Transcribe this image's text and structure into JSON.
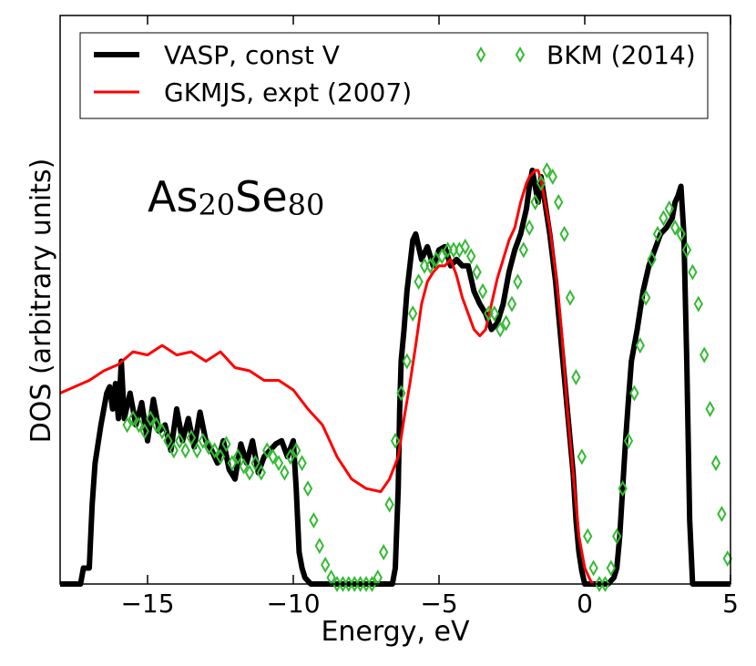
{
  "chart_data": {
    "type": "line",
    "title": "",
    "annotation": {
      "base1": "As",
      "sub1": "20",
      "base2": "Se",
      "sub2": "80"
    },
    "xlabel": "Energy, eV",
    "ylabel": "DOS (arbitrary units)",
    "xlim": [
      -18,
      5
    ],
    "ylim": [
      0,
      1.3
    ],
    "x_ticks": [
      -15,
      -10,
      -5,
      0,
      5
    ],
    "x_tick_labels": [
      "−15",
      "−10",
      "−5",
      "0",
      "5"
    ],
    "grid": false,
    "legend_placement": "top",
    "series": [
      {
        "name": "VASP, const V",
        "style": "line",
        "color": "#000000",
        "x": [
          -18,
          -17.3,
          -17.2,
          -17.0,
          -16.9,
          -16.8,
          -16.6,
          -16.5,
          -16.4,
          -16.3,
          -16.2,
          -16.1,
          -16.0,
          -15.9,
          -15.8,
          -15.6,
          -15.4,
          -15.2,
          -15.0,
          -14.8,
          -14.6,
          -14.4,
          -14.2,
          -14.0,
          -13.8,
          -13.6,
          -13.4,
          -13.2,
          -13.0,
          -12.8,
          -12.6,
          -12.4,
          -12.2,
          -12.0,
          -11.8,
          -11.6,
          -11.4,
          -11.2,
          -11.0,
          -10.8,
          -10.6,
          -10.4,
          -10.2,
          -10.0,
          -9.9,
          -9.8,
          -9.7,
          -9.6,
          -9.4,
          -9.0,
          -8.0,
          -7.0,
          -6.6,
          -6.5,
          -6.4,
          -6.35,
          -6.3,
          -6.2,
          -6.1,
          -6.0,
          -5.9,
          -5.8,
          -5.6,
          -5.4,
          -5.2,
          -5.0,
          -4.8,
          -4.6,
          -4.4,
          -4.2,
          -4.0,
          -3.8,
          -3.6,
          -3.4,
          -3.2,
          -3.0,
          -2.8,
          -2.6,
          -2.4,
          -2.2,
          -2.0,
          -1.9,
          -1.8,
          -1.7,
          -1.6,
          -1.5,
          -1.4,
          -1.2,
          -1.0,
          -0.8,
          -0.6,
          -0.4,
          -0.3,
          -0.2,
          -0.1,
          0.0,
          0.2,
          0.4,
          0.6,
          0.8,
          1.0,
          1.1,
          1.2,
          1.3,
          1.4,
          1.5,
          1.6,
          1.8,
          2.0,
          2.2,
          2.4,
          2.6,
          2.8,
          3.0,
          3.1,
          3.2,
          3.3,
          3.4,
          3.5,
          3.6,
          3.7,
          5.0
        ],
        "y": [
          0,
          0,
          0.05,
          0.05,
          0.25,
          0.38,
          0.5,
          0.55,
          0.6,
          0.62,
          0.55,
          0.63,
          0.52,
          0.7,
          0.52,
          0.6,
          0.5,
          0.57,
          0.45,
          0.58,
          0.48,
          0.5,
          0.42,
          0.55,
          0.45,
          0.52,
          0.43,
          0.54,
          0.45,
          0.42,
          0.38,
          0.45,
          0.36,
          0.33,
          0.44,
          0.38,
          0.45,
          0.35,
          0.4,
          0.42,
          0.44,
          0.45,
          0.4,
          0.45,
          0.3,
          0.1,
          0.05,
          0.02,
          0,
          0,
          0,
          0,
          0,
          0.05,
          0.3,
          0.55,
          0.7,
          0.8,
          0.92,
          1.0,
          1.08,
          1.1,
          1.02,
          1.06,
          1.0,
          1.05,
          1.06,
          1.0,
          1.02,
          1.0,
          1.0,
          0.92,
          0.88,
          0.85,
          0.8,
          0.82,
          0.88,
          0.98,
          1.05,
          1.1,
          1.18,
          1.25,
          1.3,
          1.25,
          1.2,
          1.28,
          1.22,
          1.1,
          0.95,
          0.75,
          0.55,
          0.35,
          0.2,
          0.1,
          0.04,
          0.0,
          0.0,
          0.0,
          0.0,
          0.0,
          0.02,
          0.05,
          0.15,
          0.3,
          0.45,
          0.58,
          0.7,
          0.8,
          0.92,
          1.0,
          1.05,
          1.1,
          1.12,
          1.15,
          1.2,
          1.22,
          1.25,
          1.1,
          0.7,
          0.2,
          0.0,
          0.0
        ]
      },
      {
        "name": "GKMJS, expt (2007)",
        "style": "line",
        "color": "#ff0000",
        "x": [
          -18,
          -17.5,
          -17.0,
          -16.5,
          -16.0,
          -15.5,
          -15.0,
          -14.5,
          -14.0,
          -13.5,
          -13.0,
          -12.5,
          -12.0,
          -11.5,
          -11.0,
          -10.5,
          -10.0,
          -9.5,
          -9.0,
          -8.5,
          -8.0,
          -7.5,
          -7.0,
          -6.7,
          -6.4,
          -6.2,
          -6.0,
          -5.8,
          -5.6,
          -5.4,
          -5.2,
          -5.0,
          -4.8,
          -4.6,
          -4.4,
          -4.2,
          -4.0,
          -3.8,
          -3.6,
          -3.4,
          -3.2,
          -3.0,
          -2.8,
          -2.6,
          -2.4,
          -2.2,
          -2.0,
          -1.9,
          -1.8,
          -1.7,
          -1.6,
          -1.5,
          -1.4,
          -1.2,
          -1.0,
          -0.8,
          -0.6,
          -0.4,
          -0.2,
          0.0,
          0.1,
          0.2,
          0.3
        ],
        "y": [
          0.6,
          0.62,
          0.64,
          0.67,
          0.69,
          0.73,
          0.72,
          0.75,
          0.72,
          0.73,
          0.7,
          0.73,
          0.68,
          0.67,
          0.64,
          0.64,
          0.61,
          0.55,
          0.5,
          0.4,
          0.33,
          0.3,
          0.29,
          0.33,
          0.4,
          0.52,
          0.63,
          0.75,
          0.88,
          0.95,
          0.98,
          1.0,
          1.0,
          1.02,
          0.97,
          0.9,
          0.85,
          0.8,
          0.78,
          0.8,
          0.88,
          0.96,
          1.02,
          1.08,
          1.12,
          1.2,
          1.26,
          1.28,
          1.29,
          1.3,
          1.3,
          1.27,
          1.22,
          1.12,
          0.98,
          0.8,
          0.55,
          0.35,
          0.15,
          0.05,
          0.03,
          0.01,
          0.0
        ]
      },
      {
        "name": "BKM (2014)",
        "style": "markers",
        "marker": "diamond",
        "color": "#33bb33",
        "x": [
          -15.7,
          -15.5,
          -15.3,
          -15.1,
          -14.9,
          -14.7,
          -14.5,
          -14.3,
          -14.1,
          -13.9,
          -13.7,
          -13.5,
          -13.3,
          -13.1,
          -12.9,
          -12.7,
          -12.5,
          -12.3,
          -12.1,
          -11.9,
          -11.7,
          -11.5,
          -11.3,
          -11.1,
          -10.9,
          -10.7,
          -10.5,
          -10.3,
          -10.1,
          -9.9,
          -9.7,
          -9.5,
          -9.3,
          -9.1,
          -8.9,
          -8.7,
          -8.5,
          -8.3,
          -8.1,
          -7.9,
          -7.7,
          -7.5,
          -7.3,
          -7.1,
          -6.9,
          -6.7,
          -6.5,
          -6.3,
          -6.1,
          -5.9,
          -5.7,
          -5.5,
          -5.3,
          -5.1,
          -4.9,
          -4.7,
          -4.5,
          -4.3,
          -4.1,
          -3.9,
          -3.7,
          -3.5,
          -3.3,
          -3.1,
          -2.9,
          -2.7,
          -2.5,
          -2.3,
          -2.1,
          -1.9,
          -1.7,
          -1.5,
          -1.3,
          -1.1,
          -0.9,
          -0.7,
          -0.5,
          -0.3,
          -0.1,
          0.1,
          0.3,
          0.5,
          0.7,
          0.9,
          1.1,
          1.3,
          1.5,
          1.7,
          1.9,
          2.1,
          2.3,
          2.5,
          2.7,
          2.9,
          3.1,
          3.3,
          3.5,
          3.7,
          3.9,
          4.1,
          4.3,
          4.5,
          4.7,
          4.9
        ],
        "y": [
          0.5,
          0.52,
          0.5,
          0.48,
          0.52,
          0.5,
          0.48,
          0.45,
          0.42,
          0.45,
          0.42,
          0.46,
          0.42,
          0.45,
          0.43,
          0.42,
          0.4,
          0.44,
          0.38,
          0.4,
          0.37,
          0.35,
          0.38,
          0.35,
          0.42,
          0.4,
          0.38,
          0.35,
          0.4,
          0.42,
          0.38,
          0.3,
          0.2,
          0.12,
          0.06,
          0.02,
          0.0,
          0.0,
          0.0,
          0.0,
          0.0,
          0.0,
          0.0,
          0.02,
          0.1,
          0.25,
          0.45,
          0.6,
          0.7,
          0.85,
          0.95,
          1.0,
          1.0,
          1.02,
          1.03,
          1.05,
          1.05,
          1.05,
          1.06,
          1.03,
          0.98,
          0.92,
          0.85,
          0.85,
          0.8,
          0.82,
          0.88,
          0.95,
          1.05,
          1.12,
          1.2,
          1.26,
          1.3,
          1.28,
          1.2,
          1.1,
          0.9,
          0.65,
          0.4,
          0.15,
          0.05,
          0.0,
          0.0,
          0.05,
          0.15,
          0.3,
          0.45,
          0.6,
          0.75,
          0.9,
          1.02,
          1.1,
          1.15,
          1.18,
          1.12,
          1.1,
          1.05,
          0.98,
          0.88,
          0.72,
          0.55,
          0.38,
          0.22,
          0.08
        ]
      }
    ]
  }
}
